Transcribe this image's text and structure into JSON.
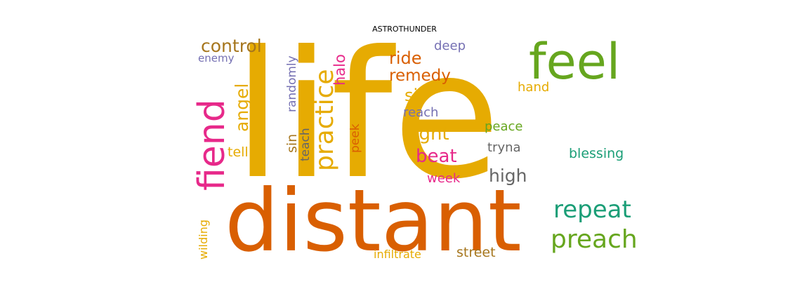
{
  "title": "ASTROTHUNDER",
  "colors": {
    "life": "#e6ab02",
    "distant": "#d95f02",
    "feel": "#66a61e",
    "fiend": "#e7298a",
    "teal": "#1b9e77",
    "purple": "#7570b3",
    "gray": "#666666",
    "brown": "#a6761d"
  },
  "words": {
    "life": "life",
    "distant": "distant",
    "feel": "feel",
    "fiend": "fiend",
    "practice": "practice",
    "repeat": "repeat",
    "preach": "preach",
    "control": "control",
    "angel": "angel",
    "halo": "halo",
    "ride": "ride",
    "remedy": "remedy",
    "sit": "sit",
    "light": "light",
    "beat": "beat",
    "high": "high",
    "blessing": "blessing",
    "deep": "deep",
    "reach": "reach",
    "hand": "hand",
    "peace": "peace",
    "tryna": "tryna",
    "week": "week",
    "enemy": "enemy",
    "randomly": "randomly",
    "teach": "teach",
    "sin": "sin",
    "tell": "tell",
    "peek": "peek",
    "wilding": "wilding",
    "infiltrate": "infiltrate",
    "street": "street"
  }
}
